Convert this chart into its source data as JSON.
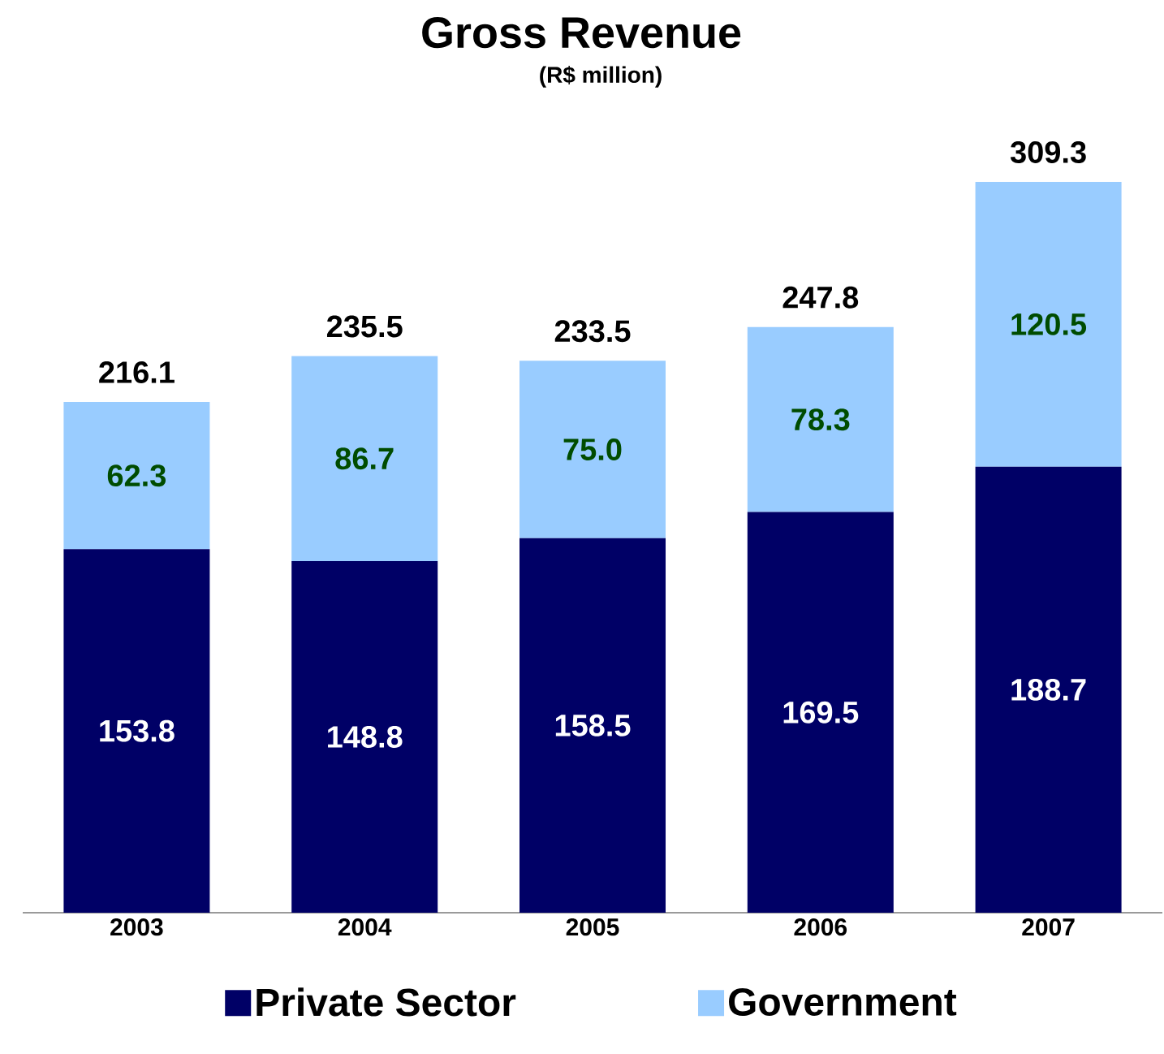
{
  "chart_data": {
    "type": "bar",
    "title": "Gross Revenue",
    "subtitle": "(R$ million)",
    "categories": [
      "2003",
      "2004",
      "2005",
      "2006",
      "2007"
    ],
    "stacked": true,
    "series": [
      {
        "name": "Private Sector",
        "color": "#000066",
        "values": [
          153.8,
          148.8,
          158.5,
          169.5,
          188.7
        ],
        "value_labels": [
          "153.8",
          "148.8",
          "158.5",
          "169.5",
          "188.7"
        ]
      },
      {
        "name": "Government",
        "color": "#99ccff",
        "values": [
          62.3,
          86.7,
          75.0,
          78.3,
          120.5
        ],
        "value_labels": [
          "62.3",
          "86.7",
          "75.0",
          "78.3",
          "120.5"
        ]
      }
    ],
    "totals": [
      "216.1",
      "235.5",
      "233.5",
      "247.8",
      "309.3"
    ],
    "tick_labels": "x",
    "legend": "bottom"
  }
}
